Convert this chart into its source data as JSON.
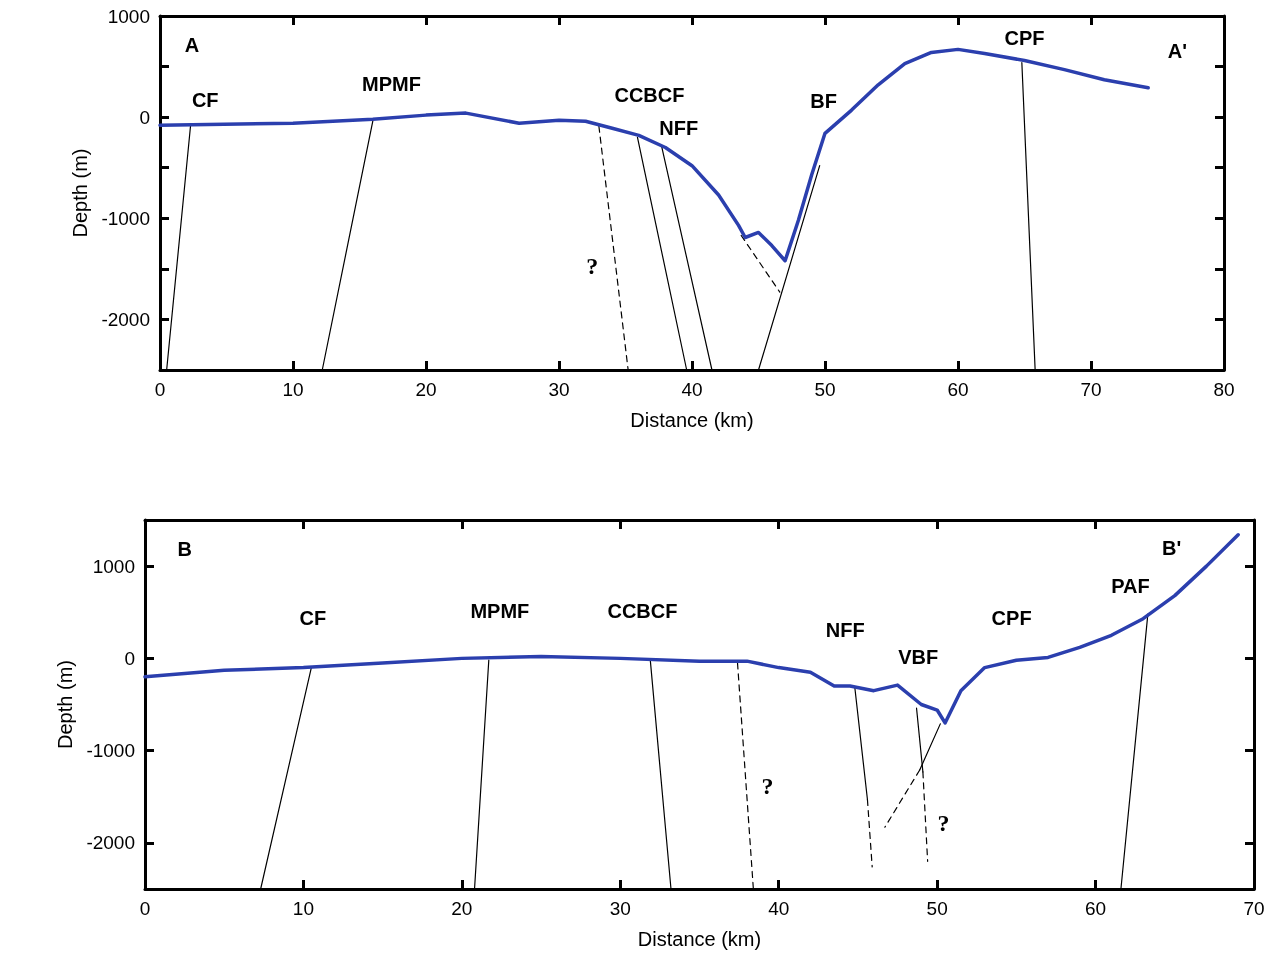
{
  "chart_data": [
    {
      "type": "line",
      "xlabel": "Distance (km)",
      "ylabel": "Depth (m)",
      "xlim": [
        0,
        80
      ],
      "xticks": [
        0,
        10,
        20,
        30,
        40,
        50,
        60,
        70,
        80
      ],
      "ylim": [
        -2500,
        1000
      ],
      "yticks": [
        {
          "value": -2500,
          "label": null
        },
        -2000,
        {
          "value": -1500,
          "label": null
        },
        -1000,
        {
          "value": -500,
          "label": null
        },
        0,
        {
          "value": 500,
          "label": null
        },
        1000
      ],
      "grid": false,
      "marker": "none",
      "series": [
        {
          "color": "#2b3fae",
          "x": [
            0,
            10,
            16,
            20,
            23,
            27,
            30,
            32,
            34,
            36,
            38,
            40,
            42,
            43.5,
            44,
            45,
            46,
            47,
            48,
            49,
            50,
            52,
            54,
            56,
            58,
            60,
            62,
            65,
            68,
            71,
            74.3
          ],
          "values": [
            -80,
            -60,
            -20,
            20,
            40,
            -60,
            -30,
            -40,
            -110,
            -180,
            -300,
            -480,
            -770,
            -1070,
            -1190,
            -1140,
            -1270,
            -1420,
            -1020,
            -570,
            -160,
            70,
            320,
            530,
            640,
            670,
            630,
            560,
            470,
            370,
            290
          ]
        },
        {
          "color": "#000000",
          "x": [
            2.3,
            0.5
          ],
          "values": [
            -80,
            -2500
          ]
        },
        {
          "color": "#000000",
          "x": [
            16,
            12.2
          ],
          "values": [
            -40,
            -2500
          ]
        },
        {
          "color": "#000000",
          "line_style": "dashed",
          "x": [
            33,
            35.2
          ],
          "values": [
            -90,
            -2500
          ]
        },
        {
          "color": "#000000",
          "x": [
            35.9,
            39.6
          ],
          "values": [
            -200,
            -2500
          ]
        },
        {
          "color": "#000000",
          "x": [
            37.7,
            41.5
          ],
          "values": [
            -280,
            -2500
          ]
        },
        {
          "color": "#000000",
          "x": [
            45,
            49.6
          ],
          "values": [
            -2500,
            -480
          ]
        },
        {
          "color": "#000000",
          "line_style": "dashed",
          "x": [
            43.7,
            46.6
          ],
          "values": [
            -1170,
            -1730
          ]
        },
        {
          "color": "#000000",
          "x": [
            64.8,
            65.8
          ],
          "values": [
            540,
            -2500
          ]
        }
      ],
      "annotations": [
        "A",
        "CF",
        "MPMF",
        "CCBCF",
        "NFF",
        "BF",
        "CPF",
        "A'",
        "?"
      ]
    },
    {
      "type": "line",
      "xlabel": "Distance (km)",
      "ylabel": "Depth (m)",
      "xlim": [
        0,
        70
      ],
      "xticks": [
        0,
        10,
        20,
        30,
        40,
        50,
        60,
        70
      ],
      "ylim": [
        -2500,
        1500
      ],
      "yticks": [
        {
          "value": -2500,
          "label": null
        },
        -2000,
        -1000,
        0,
        1000
      ],
      "grid": false,
      "marker": "none",
      "series": [
        {
          "color": "#2b3fae",
          "x": [
            0,
            5,
            10,
            15,
            20,
            25,
            30,
            35,
            38,
            40,
            42,
            43.5,
            44.5,
            46,
            47.5,
            49,
            50,
            50.5,
            51.5,
            53,
            55,
            57,
            59,
            61,
            63,
            65,
            67,
            69
          ],
          "values": [
            -200,
            -130,
            -100,
            -50,
            0,
            20,
            0,
            -30,
            -30,
            -100,
            -150,
            -300,
            -300,
            -350,
            -290,
            -500,
            -560,
            -700,
            -350,
            -100,
            -20,
            10,
            120,
            250,
            430,
            680,
            1000,
            1340
          ]
        },
        {
          "color": "#000000",
          "x": [
            10.5,
            7.3
          ],
          "values": [
            -100,
            -2500
          ]
        },
        {
          "color": "#000000",
          "x": [
            21.7,
            20.8
          ],
          "values": [
            -20,
            -2500
          ]
        },
        {
          "color": "#000000",
          "x": [
            31.9,
            33.2
          ],
          "values": [
            -30,
            -2500
          ]
        },
        {
          "color": "#000000",
          "line_style": "dashed",
          "x": [
            37.4,
            38.4
          ],
          "values": [
            -50,
            -2500
          ]
        },
        {
          "color": "#000000",
          "x": [
            44.8,
            45.6
          ],
          "values": [
            -310,
            -1530
          ]
        },
        {
          "color": "#000000",
          "line_style": "dashed",
          "x": [
            45.6,
            45.9
          ],
          "values": [
            -1530,
            -2260
          ]
        },
        {
          "color": "#000000",
          "x": [
            48.7,
            49.1
          ],
          "values": [
            -540,
            -1230
          ]
        },
        {
          "color": "#000000",
          "line_style": "dashed",
          "x": [
            49.1,
            49.4
          ],
          "values": [
            -1230,
            -2200
          ]
        },
        {
          "color": "#000000",
          "x": [
            50.2,
            48.9
          ],
          "values": [
            -710,
            -1210
          ]
        },
        {
          "color": "#000000",
          "line_style": "dashed",
          "x": [
            48.9,
            46.7
          ],
          "values": [
            -1210,
            -1830
          ]
        },
        {
          "color": "#000000",
          "x": [
            63.3,
            61.6
          ],
          "values": [
            480,
            -2500
          ]
        }
      ],
      "annotations": [
        "B",
        "CF",
        "MPMF",
        "CCBCF",
        "NFF",
        "VBF",
        "CPF",
        "PAF",
        "B'",
        "?",
        "?"
      ]
    }
  ]
}
